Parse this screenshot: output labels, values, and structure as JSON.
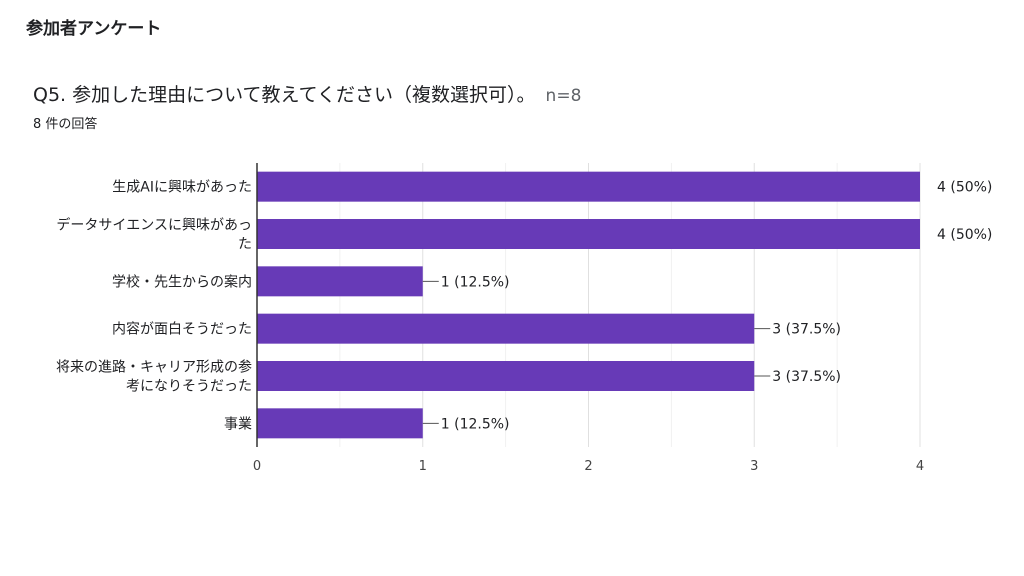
{
  "header": {
    "title": "参加者アンケート"
  },
  "question": {
    "text": "Q5. 参加した理由について教えてください（複数選択可）。",
    "n_label": "n=8",
    "response_count": "8 件の回答"
  },
  "colors": {
    "bar": "#673ab7",
    "grid": "#e0e0e0",
    "axis": "#333333"
  },
  "chart_data": {
    "type": "bar",
    "orientation": "horizontal",
    "title": "",
    "xlabel": "",
    "ylabel": "",
    "xlim": [
      0,
      4
    ],
    "x_ticks": [
      "0",
      "1",
      "2",
      "3",
      "4"
    ],
    "grid": true,
    "categories": [
      [
        "生成AIに興味があった"
      ],
      [
        "データサイエンスに興味があっ",
        "た"
      ],
      [
        "学校・先生からの案内"
      ],
      [
        "内容が面白そうだった"
      ],
      [
        "将来の進路・キャリア形成の参",
        "考になりそうだった"
      ],
      [
        "事業"
      ]
    ],
    "values": [
      4,
      4,
      1,
      3,
      3,
      1
    ],
    "data_labels": [
      "4 (50%)",
      "4 (50%)",
      "1 (12.5%)",
      "3 (37.5%)",
      "3 (37.5%)",
      "1 (12.5%)"
    ]
  }
}
